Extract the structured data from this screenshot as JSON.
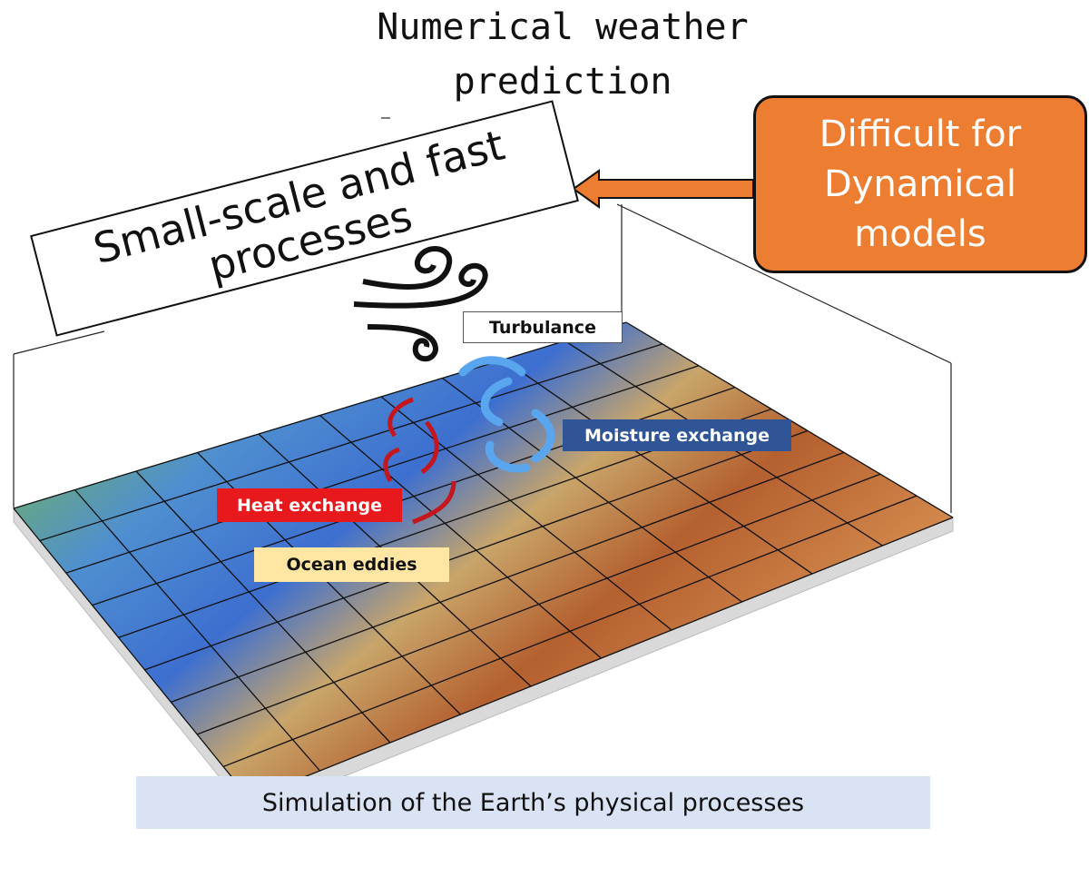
{
  "title": "Numerical weather prediction",
  "note_box": "Small-scale and fast processes",
  "callout": "Difficult for Dynamical models",
  "labels": {
    "turbulence": "Turbulance",
    "moisture": "Moisture exchange",
    "heat": "Heat exchange",
    "eddies": "Ocean eddies"
  },
  "caption": "Simulation of the Earth’s physical processes"
}
